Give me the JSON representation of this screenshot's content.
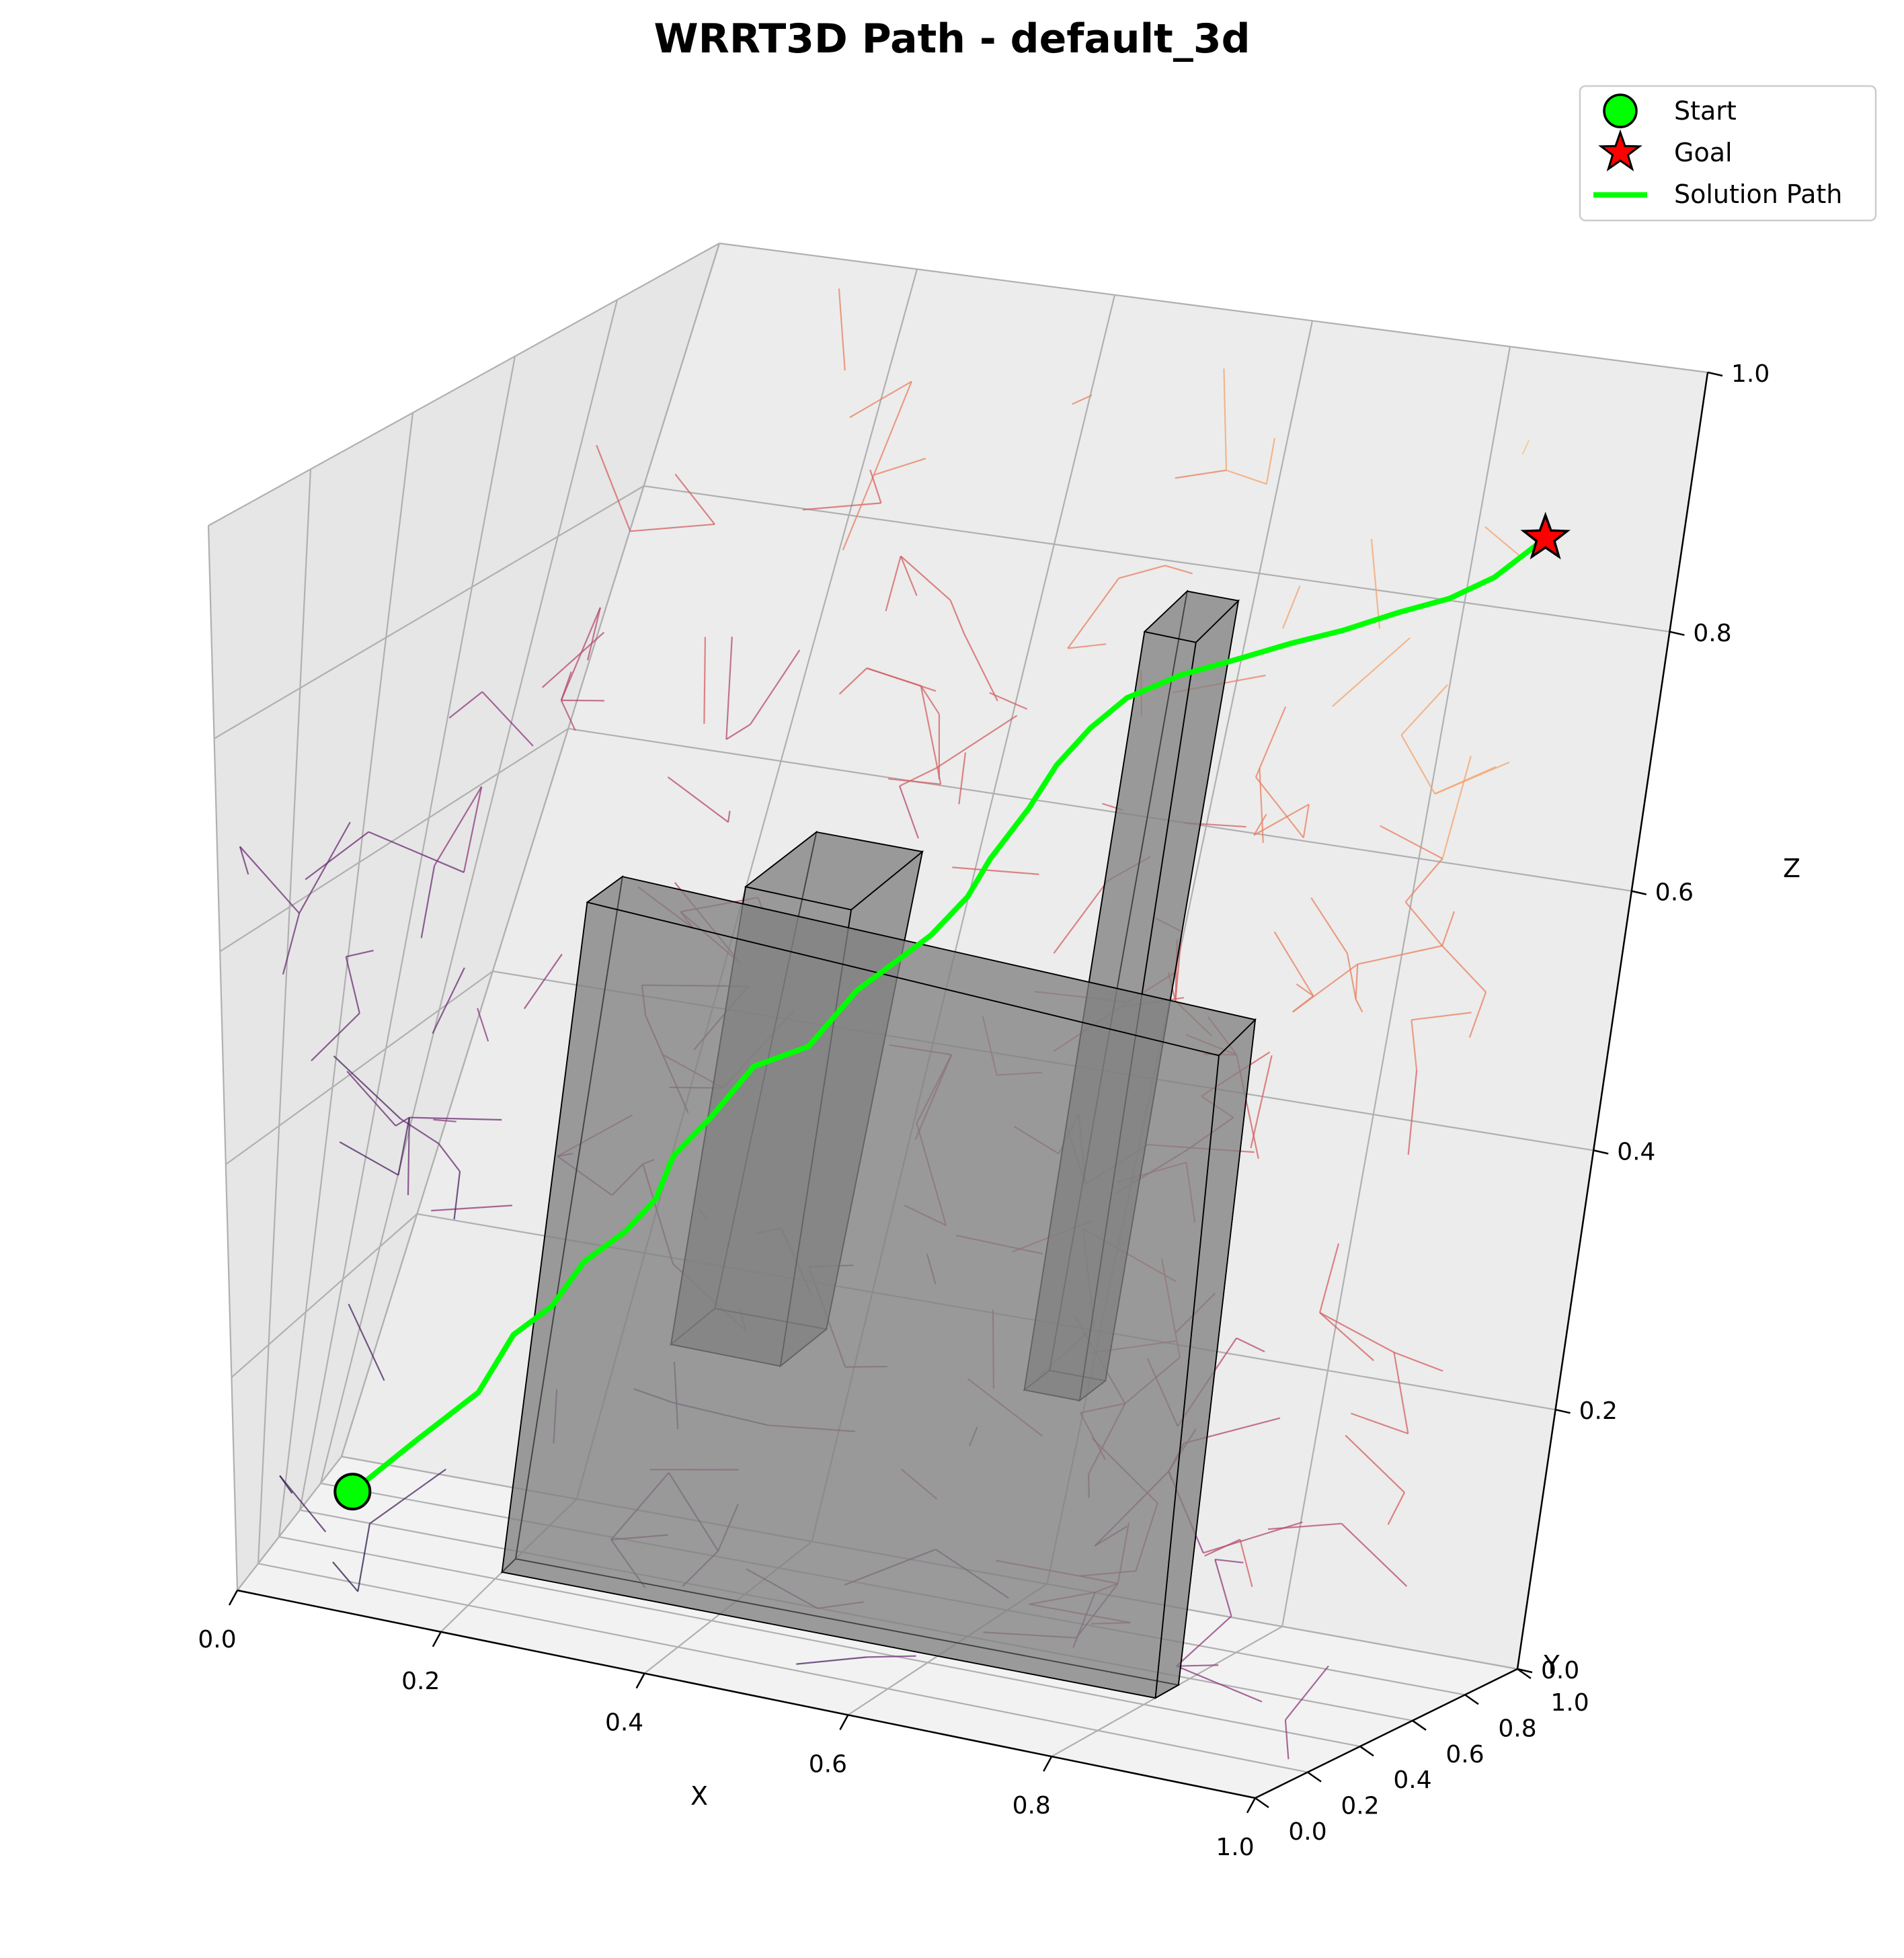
{
  "chart_data": {
    "type": "scatter",
    "projection": "3d",
    "title": "WRRT3D Path - default_3d",
    "xlabel": "X",
    "ylabel": "Y",
    "zlabel": "Z",
    "xlim": [
      0,
      1
    ],
    "ylim": [
      0,
      1
    ],
    "zlim": [
      0,
      1
    ],
    "x_ticks": [
      "0.0",
      "0.2",
      "0.4",
      "0.6",
      "0.8",
      "1.0"
    ],
    "y_ticks": [
      "0.0",
      "0.2",
      "0.4",
      "0.6",
      "0.8",
      "1.0"
    ],
    "z_ticks": [
      "0.0",
      "0.2",
      "0.4",
      "0.6",
      "0.8",
      "1.0"
    ],
    "grid": true,
    "legend_position": "top-right",
    "legend": [
      {
        "label": "Start",
        "marker": "circle",
        "color": "#00ff00"
      },
      {
        "label": "Goal",
        "marker": "star",
        "color": "#ff0000"
      },
      {
        "label": "Solution Path",
        "marker": "line",
        "color": "#00ff00"
      }
    ],
    "start": {
      "x": 0.1,
      "y": 0.1,
      "z": 0.1
    },
    "goal": {
      "x": 0.9,
      "y": 0.9,
      "z": 0.9
    },
    "obstacles": [
      {
        "name": "wall",
        "x": [
          0.2,
          0.8
        ],
        "y": [
          0.45,
          0.55
        ],
        "z": [
          0.0,
          0.6
        ]
      },
      {
        "name": "block-1",
        "x": [
          0.3,
          0.4
        ],
        "y": [
          0.6,
          0.8
        ],
        "z": [
          0.2,
          0.6
        ]
      },
      {
        "name": "pillar",
        "x": [
          0.6,
          0.65
        ],
        "y": [
          0.7,
          0.8
        ],
        "z": [
          0.2,
          0.85
        ]
      }
    ],
    "series": [
      {
        "name": "Solution Path",
        "color": "#00ff00",
        "points": [
          [
            0.1,
            0.1,
            0.1
          ],
          [
            0.15,
            0.16,
            0.15
          ],
          [
            0.2,
            0.2,
            0.2
          ],
          [
            0.22,
            0.25,
            0.25
          ],
          [
            0.25,
            0.27,
            0.28
          ],
          [
            0.27,
            0.3,
            0.32
          ],
          [
            0.3,
            0.33,
            0.35
          ],
          [
            0.32,
            0.35,
            0.38
          ],
          [
            0.33,
            0.36,
            0.42
          ],
          [
            0.35,
            0.4,
            0.45
          ],
          [
            0.38,
            0.42,
            0.5
          ],
          [
            0.42,
            0.45,
            0.52
          ],
          [
            0.45,
            0.48,
            0.57
          ],
          [
            0.48,
            0.5,
            0.6
          ],
          [
            0.5,
            0.52,
            0.62
          ],
          [
            0.52,
            0.55,
            0.65
          ],
          [
            0.53,
            0.57,
            0.68
          ],
          [
            0.55,
            0.6,
            0.72
          ],
          [
            0.56,
            0.63,
            0.75
          ],
          [
            0.58,
            0.65,
            0.78
          ],
          [
            0.6,
            0.68,
            0.8
          ],
          [
            0.64,
            0.7,
            0.82
          ],
          [
            0.68,
            0.73,
            0.83
          ],
          [
            0.72,
            0.76,
            0.84
          ],
          [
            0.76,
            0.78,
            0.85
          ],
          [
            0.8,
            0.81,
            0.86
          ],
          [
            0.84,
            0.83,
            0.87
          ],
          [
            0.87,
            0.86,
            0.88
          ],
          [
            0.9,
            0.9,
            0.9
          ]
        ]
      }
    ]
  }
}
